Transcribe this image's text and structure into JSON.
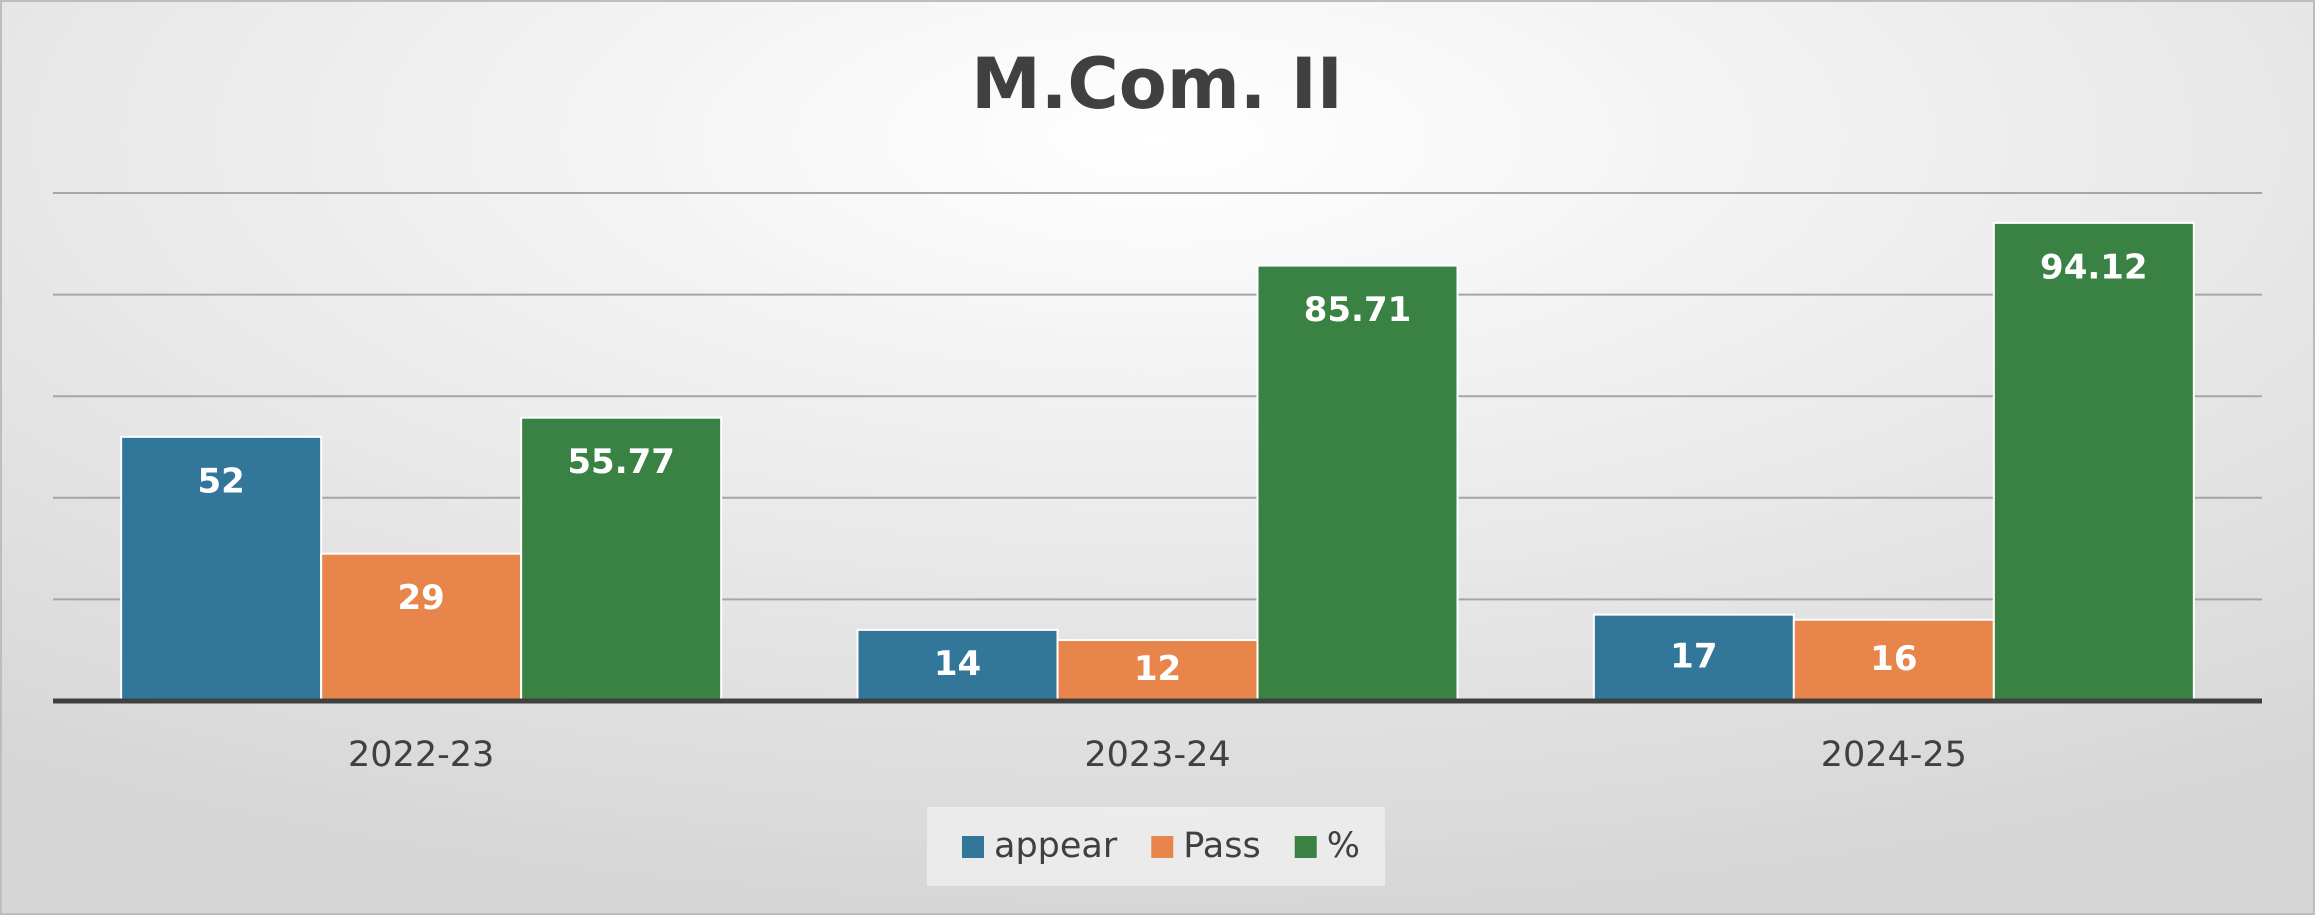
{
  "chart_data": {
    "type": "bar",
    "title": "M.Com. II",
    "categories": [
      "2022-23",
      "2023-24",
      "2024-25"
    ],
    "series": [
      {
        "name": "appear",
        "color": "#32769a",
        "values": [
          52,
          14,
          17
        ]
      },
      {
        "name": "Pass",
        "color": "#e8854b",
        "values": [
          29,
          12,
          16
        ]
      },
      {
        "name": "%",
        "color": "#3a8243",
        "values": [
          55.77,
          85.71,
          94.12
        ]
      }
    ],
    "ylim": [
      0,
      100
    ],
    "yticks": [
      0,
      20,
      40,
      60,
      80,
      100
    ],
    "grid": true,
    "legend": "bottom"
  }
}
